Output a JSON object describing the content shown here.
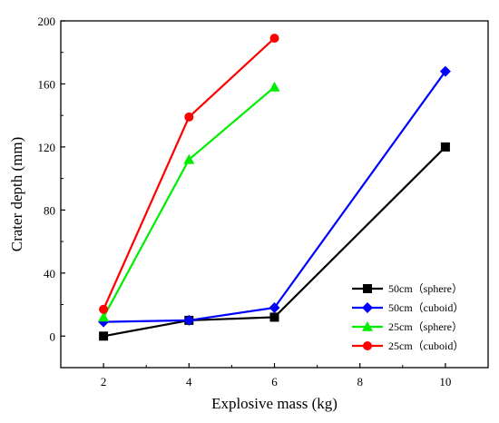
{
  "chart_data": {
    "type": "line",
    "xlabel": "Explosive mass (kg)",
    "ylabel": "Crater depth (mm)",
    "xlim": [
      1,
      11
    ],
    "ylim": [
      -20,
      200
    ],
    "xticks": [
      2,
      4,
      6,
      8,
      10
    ],
    "yticks": [
      0,
      40,
      80,
      120,
      160,
      200
    ],
    "grid": false,
    "legend_position": "bottom-right",
    "series": [
      {
        "name": "50cm（sphere）",
        "color": "#000000",
        "marker": "square",
        "x": [
          2,
          4,
          6,
          10
        ],
        "y": [
          0,
          10,
          12,
          120
        ]
      },
      {
        "name": "50cm（cuboid）",
        "color": "#0000ff",
        "marker": "diamond",
        "x": [
          2,
          4,
          6,
          10
        ],
        "y": [
          9,
          10,
          18,
          168
        ]
      },
      {
        "name": "25cm（sphere）",
        "color": "#00ee00",
        "marker": "triangle",
        "x": [
          2,
          4,
          6
        ],
        "y": [
          12,
          112,
          158
        ]
      },
      {
        "name": "25cm（cuboid）",
        "color": "#ff0000",
        "marker": "circle",
        "x": [
          2,
          4,
          6
        ],
        "y": [
          17,
          139,
          189
        ]
      }
    ]
  }
}
